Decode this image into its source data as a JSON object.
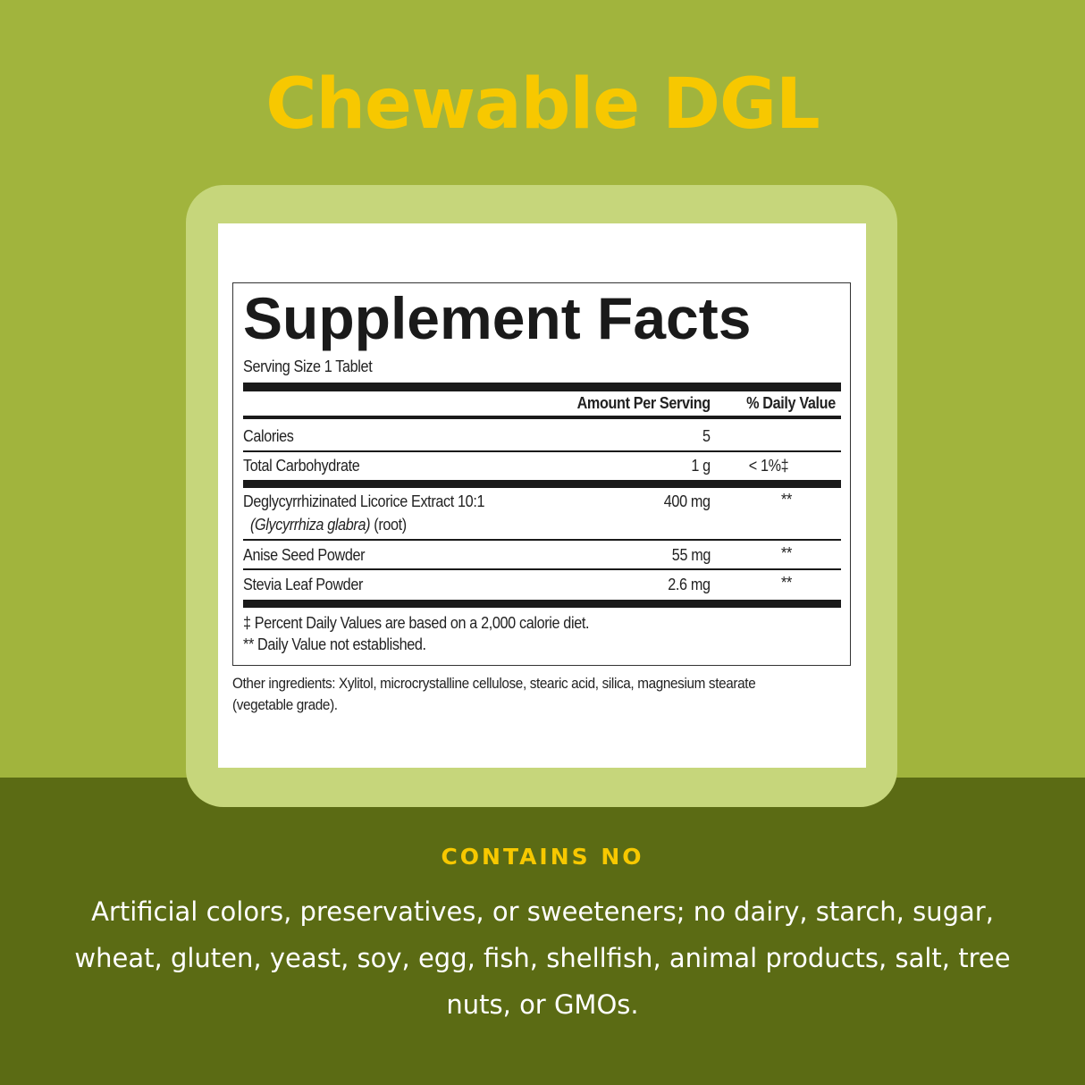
{
  "colors": {
    "background_top": "#a1b43d",
    "background_bottom": "#5b6b14",
    "frame": "#c6d67b",
    "accent_yellow": "#f7c800"
  },
  "title": "Chewable DGL",
  "label": {
    "heading": "Supplement Facts",
    "serving_size": "Serving Size 1 Tablet",
    "col_amount": "Amount Per Serving",
    "col_dv": "% Daily Value",
    "rows": [
      {
        "name": "Calories",
        "amount": "5",
        "dv": ""
      },
      {
        "name": "Total Carbohydrate",
        "amount": "1 g",
        "dv": "< 1%‡"
      },
      {
        "name": "Deglycyrrhizinated Licorice Extract 10:1",
        "sub_italic": "(Glycyrrhiza glabra)",
        "sub": " (root)",
        "amount": "400 mg",
        "dv": "**"
      },
      {
        "name": "Anise Seed Powder",
        "amount": "55 mg",
        "dv": "**"
      },
      {
        "name": "Stevia Leaf Powder",
        "amount": "2.6 mg",
        "dv": "**"
      }
    ],
    "footnote1": "‡ Percent Daily Values are based on a 2,000 calorie diet.",
    "footnote2": "** Daily Value not established.",
    "other_1": "Other ingredients: Xylitol, microcrystalline cellulose, stearic acid, silica, magnesium stearate",
    "other_2": "(vegetable grade)."
  },
  "contains_heading": "CONTAINS NO",
  "contains_text": "Artificial colors, preservatives, or sweeteners; no dairy, starch, sugar, wheat, gluten, yeast, soy, egg, fish, shellfish, animal products, salt, tree nuts, or GMOs."
}
